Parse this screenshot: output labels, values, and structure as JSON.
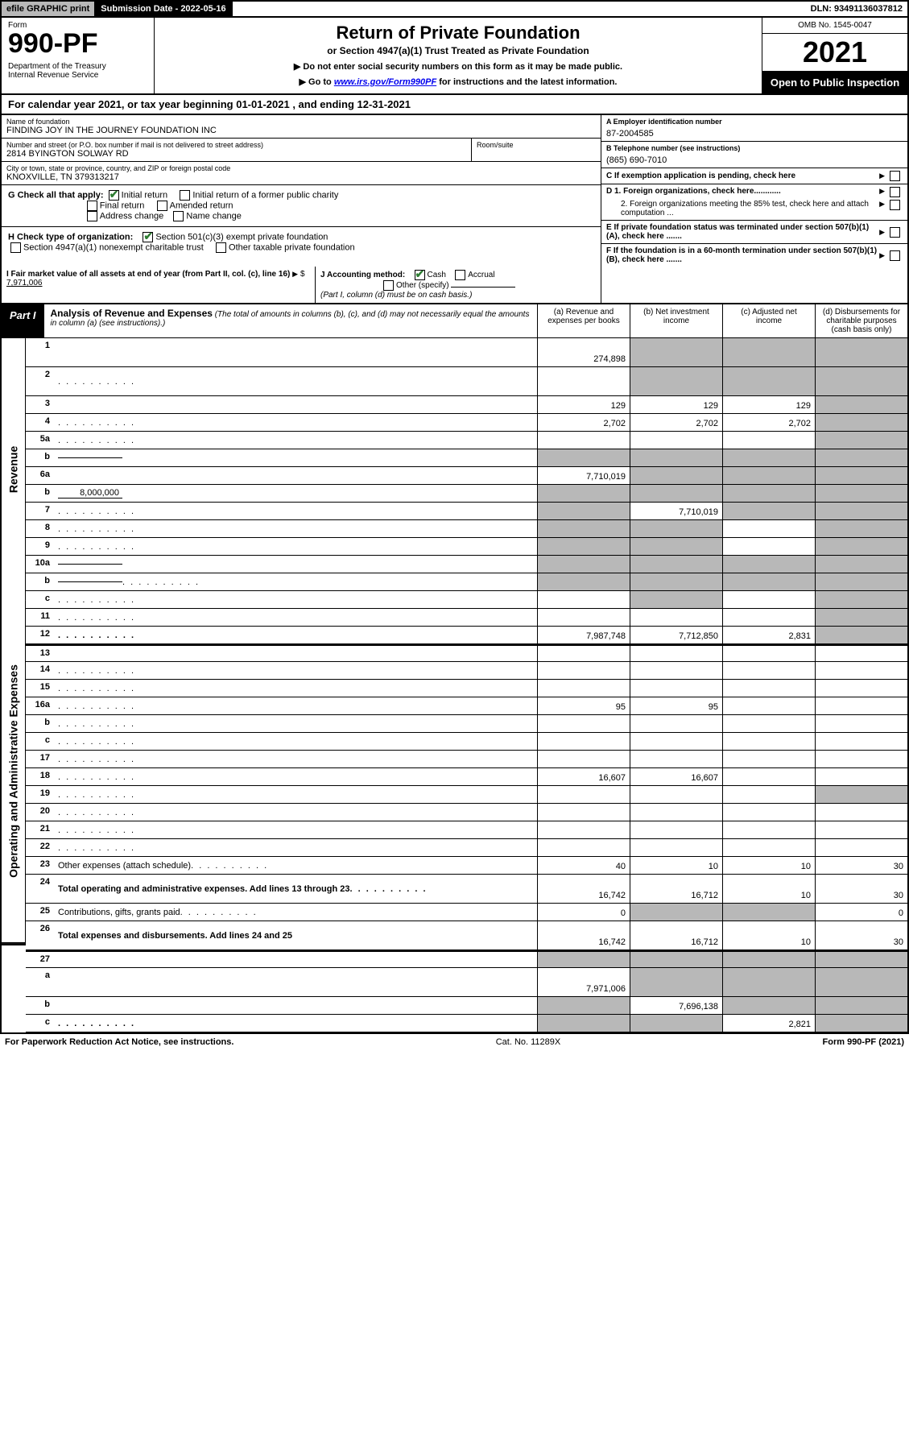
{
  "topbar": {
    "efile": "efile GRAPHIC print",
    "subdate_label": "Submission Date - 2022-05-16",
    "dln": "DLN: 93491136037812"
  },
  "header": {
    "form_label": "Form",
    "form_no": "990-PF",
    "dept": "Department of the Treasury\nInternal Revenue Service",
    "title": "Return of Private Foundation",
    "subtitle": "or Section 4947(a)(1) Trust Treated as Private Foundation",
    "note1": "▶ Do not enter social security numbers on this form as it may be made public.",
    "note2_pre": "▶ Go to ",
    "note2_link": "www.irs.gov/Form990PF",
    "note2_post": " for instructions and the latest information.",
    "omb": "OMB No. 1545-0047",
    "year": "2021",
    "inspect": "Open to Public Inspection"
  },
  "calyear": "For calendar year 2021, or tax year beginning 01-01-2021              , and ending 12-31-2021",
  "info": {
    "name_label": "Name of foundation",
    "name": "FINDING JOY IN THE JOURNEY FOUNDATION INC",
    "addr_label": "Number and street (or P.O. box number if mail is not delivered to street address)",
    "addr": "2814 BYINGTON SOLWAY RD",
    "room_label": "Room/suite",
    "city_label": "City or town, state or province, country, and ZIP or foreign postal code",
    "city": "KNOXVILLE, TN  379313217",
    "a_label": "A Employer identification number",
    "a_val": "87-2004585",
    "b_label": "B Telephone number (see instructions)",
    "b_val": "(865) 690-7010",
    "c_label": "C If exemption application is pending, check here",
    "d1": "D 1. Foreign organizations, check here............",
    "d2": "2. Foreign organizations meeting the 85% test, check here and attach computation ...",
    "e_label": "E  If private foundation status was terminated under section 507(b)(1)(A), check here .......",
    "f_label": "F  If the foundation is in a 60-month termination under section 507(b)(1)(B), check here .......",
    "g_label": "G Check all that apply:",
    "g_opts": [
      "Initial return",
      "Initial return of a former public charity",
      "Final return",
      "Amended return",
      "Address change",
      "Name change"
    ],
    "h_label": "H Check type of organization:",
    "h_opts": [
      "Section 501(c)(3) exempt private foundation",
      "Section 4947(a)(1) nonexempt charitable trust",
      "Other taxable private foundation"
    ],
    "i_label": "I Fair market value of all assets at end of year (from Part II, col. (c), line 16)",
    "i_val": "7,971,006",
    "j_label": "J Accounting method:",
    "j_opts": [
      "Cash",
      "Accrual",
      "Other (specify)"
    ],
    "j_note": "(Part I, column (d) must be on cash basis.)"
  },
  "part1": {
    "tab": "Part I",
    "title": "Analysis of Revenue and Expenses",
    "desc": "(The total of amounts in columns (b), (c), and (d) may not necessarily equal the amounts in column (a) (see instructions).)",
    "cols": {
      "a": "(a)  Revenue and expenses per books",
      "b": "(b)  Net investment income",
      "c": "(c)  Adjusted net income",
      "d": "(d)  Disbursements for charitable purposes (cash basis only)"
    }
  },
  "rows": [
    {
      "n": "1",
      "d": "",
      "a": "274,898",
      "b": "",
      "c": "",
      "sb": true,
      "sc": true,
      "sd": true,
      "tall": true
    },
    {
      "n": "2",
      "d": "",
      "a": "",
      "b": "",
      "c": "",
      "sb": true,
      "sc": true,
      "sd": true,
      "tall": true,
      "dots": true
    },
    {
      "n": "3",
      "d": "",
      "a": "129",
      "b": "129",
      "c": "129",
      "sd": true
    },
    {
      "n": "4",
      "d": "",
      "a": "2,702",
      "b": "2,702",
      "c": "2,702",
      "sd": true,
      "dots": true
    },
    {
      "n": "5a",
      "d": "",
      "a": "",
      "b": "",
      "c": "",
      "sd": true,
      "dots": true
    },
    {
      "n": "b",
      "d": "",
      "a": "",
      "b": "",
      "c": "",
      "sa": true,
      "sb": true,
      "sc": true,
      "sd": true,
      "inline": true
    },
    {
      "n": "6a",
      "d": "",
      "a": "7,710,019",
      "b": "",
      "c": "",
      "sb": true,
      "sc": true,
      "sd": true
    },
    {
      "n": "b",
      "d": "",
      "a": "",
      "b": "",
      "c": "",
      "sa": true,
      "sb": true,
      "sc": true,
      "sd": true,
      "inline": true,
      "inlineval": "8,000,000"
    },
    {
      "n": "7",
      "d": "",
      "a": "",
      "b": "7,710,019",
      "c": "",
      "sa": true,
      "sc": true,
      "sd": true,
      "dots": true
    },
    {
      "n": "8",
      "d": "",
      "a": "",
      "b": "",
      "c": "",
      "sa": true,
      "sb": true,
      "sd": true,
      "dots": true
    },
    {
      "n": "9",
      "d": "",
      "a": "",
      "b": "",
      "c": "",
      "sa": true,
      "sb": true,
      "sd": true,
      "dots": true
    },
    {
      "n": "10a",
      "d": "",
      "a": "",
      "b": "",
      "c": "",
      "sa": true,
      "sb": true,
      "sc": true,
      "sd": true,
      "inline": true
    },
    {
      "n": "b",
      "d": "",
      "a": "",
      "b": "",
      "c": "",
      "sa": true,
      "sb": true,
      "sc": true,
      "sd": true,
      "inline": true,
      "dots": true
    },
    {
      "n": "c",
      "d": "",
      "a": "",
      "b": "",
      "c": "",
      "sb": true,
      "sd": true,
      "dots": true
    },
    {
      "n": "11",
      "d": "",
      "a": "",
      "b": "",
      "c": "",
      "sd": true,
      "dots": true
    },
    {
      "n": "12",
      "d": "",
      "a": "7,987,748",
      "b": "7,712,850",
      "c": "2,831",
      "sd": true,
      "bold": true,
      "dots": true
    }
  ],
  "rows2": [
    {
      "n": "13",
      "d": "",
      "a": "",
      "b": "",
      "c": ""
    },
    {
      "n": "14",
      "d": "",
      "a": "",
      "b": "",
      "c": "",
      "dots": true
    },
    {
      "n": "15",
      "d": "",
      "a": "",
      "b": "",
      "c": "",
      "dots": true
    },
    {
      "n": "16a",
      "d": "",
      "a": "95",
      "b": "95",
      "c": "",
      "dots": true
    },
    {
      "n": "b",
      "d": "",
      "a": "",
      "b": "",
      "c": "",
      "dots": true
    },
    {
      "n": "c",
      "d": "",
      "a": "",
      "b": "",
      "c": "",
      "dots": true
    },
    {
      "n": "17",
      "d": "",
      "a": "",
      "b": "",
      "c": "",
      "dots": true
    },
    {
      "n": "18",
      "d": "",
      "a": "16,607",
      "b": "16,607",
      "c": "",
      "dots": true
    },
    {
      "n": "19",
      "d": "",
      "a": "",
      "b": "",
      "c": "",
      "sd": true,
      "dots": true
    },
    {
      "n": "20",
      "d": "",
      "a": "",
      "b": "",
      "c": "",
      "dots": true
    },
    {
      "n": "21",
      "d": "",
      "a": "",
      "b": "",
      "c": "",
      "dots": true
    },
    {
      "n": "22",
      "d": "",
      "a": "",
      "b": "",
      "c": "",
      "dots": true
    },
    {
      "n": "23",
      "d": "30",
      "a": "40",
      "b": "10",
      "c": "10",
      "dots": true
    },
    {
      "n": "24",
      "d": "30",
      "a": "16,742",
      "b": "16,712",
      "c": "10",
      "bold": true,
      "tall": true,
      "dots": true
    },
    {
      "n": "25",
      "d": "0",
      "a": "0",
      "b": "",
      "c": "",
      "sb": true,
      "sc": true,
      "dots": true
    },
    {
      "n": "26",
      "d": "30",
      "a": "16,742",
      "b": "16,712",
      "c": "10",
      "bold": true,
      "tall": true
    }
  ],
  "rows3": [
    {
      "n": "27",
      "d": "",
      "a": "",
      "b": "",
      "c": "",
      "sa": true,
      "sb": true,
      "sc": true,
      "sd": true
    },
    {
      "n": "a",
      "d": "",
      "a": "7,971,006",
      "b": "",
      "c": "",
      "sb": true,
      "sc": true,
      "sd": true,
      "bold": true,
      "tall": true
    },
    {
      "n": "b",
      "d": "",
      "a": "",
      "b": "7,696,138",
      "c": "",
      "sa": true,
      "sc": true,
      "sd": true,
      "bold": true
    },
    {
      "n": "c",
      "d": "",
      "a": "",
      "b": "",
      "c": "2,821",
      "sa": true,
      "sb": true,
      "sd": true,
      "bold": true,
      "dots": true
    }
  ],
  "footer": {
    "left": "For Paperwork Reduction Act Notice, see instructions.",
    "center": "Cat. No. 11289X",
    "right": "Form 990-PF (2021)"
  },
  "sidelabels": {
    "rev": "Revenue",
    "exp": "Operating and Administrative Expenses"
  }
}
